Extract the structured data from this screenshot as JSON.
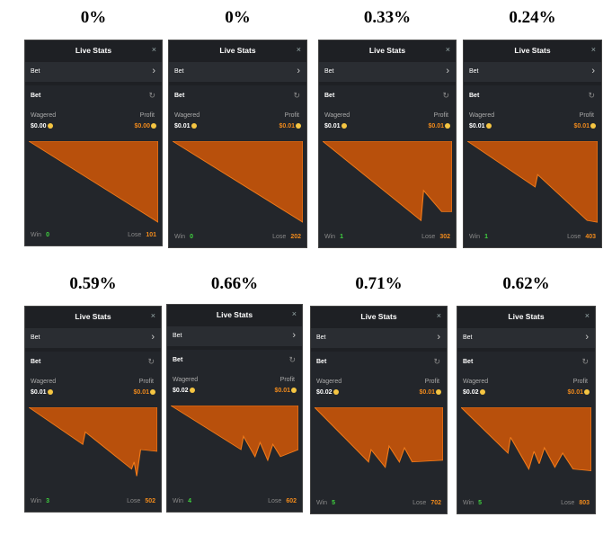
{
  "panels": [
    {
      "percent": "0%",
      "title": "Live Stats",
      "bet_row": "Bet",
      "section": "Bet",
      "wagered_label": "Wagered",
      "profit_label": "Profit",
      "wagered": "$0.00",
      "profit": "$0.00",
      "win_label": "Win",
      "win": 0,
      "lose_label": "Lose",
      "lose": 101
    },
    {
      "percent": "0%",
      "title": "Live Stats",
      "bet_row": "Bet",
      "section": "Bet",
      "wagered_label": "Wagered",
      "profit_label": "Profit",
      "wagered": "$0.01",
      "profit": "$0.01",
      "win_label": "Win",
      "win": 0,
      "lose_label": "Lose",
      "lose": 202
    },
    {
      "percent": "0.33%",
      "title": "Live Stats",
      "bet_row": "Bet",
      "section": "Bet",
      "wagered_label": "Wagered",
      "profit_label": "Profit",
      "wagered": "$0.01",
      "profit": "$0.01",
      "win_label": "Win",
      "win": 1,
      "lose_label": "Lose",
      "lose": 302
    },
    {
      "percent": "0.24%",
      "title": "Live Stats",
      "bet_row": "Bet",
      "section": "Bet",
      "wagered_label": "Wagered",
      "profit_label": "Profit",
      "wagered": "$0.01",
      "profit": "$0.01",
      "win_label": "Win",
      "win": 1,
      "lose_label": "Lose",
      "lose": 403
    },
    {
      "percent": "0.59%",
      "title": "Live Stats",
      "bet_row": "Bet",
      "section": "Bet",
      "wagered_label": "Wagered",
      "profit_label": "Profit",
      "wagered": "$0.01",
      "profit": "$0.01",
      "win_label": "Win",
      "win": 3,
      "lose_label": "Lose",
      "lose": 502
    },
    {
      "percent": "0.66%",
      "title": "Live Stats",
      "bet_row": "Bet",
      "section": "Bet",
      "wagered_label": "Wagered",
      "profit_label": "Profit",
      "wagered": "$0.02",
      "profit": "$0.01",
      "win_label": "Win",
      "win": 4,
      "lose_label": "Lose",
      "lose": 602
    },
    {
      "percent": "0.71%",
      "title": "Live Stats",
      "bet_row": "Bet",
      "section": "Bet",
      "wagered_label": "Wagered",
      "profit_label": "Profit",
      "wagered": "$0.02",
      "profit": "$0.01",
      "win_label": "Win",
      "win": 5,
      "lose_label": "Lose",
      "lose": 702
    },
    {
      "percent": "0.62%",
      "title": "Live Stats",
      "bet_row": "Bet",
      "section": "Bet",
      "wagered_label": "Wagered",
      "profit_label": "Profit",
      "wagered": "$0.02",
      "profit": "$0.01",
      "win_label": "Win",
      "win": 5,
      "lose_label": "Lose",
      "lose": 803
    }
  ]
}
